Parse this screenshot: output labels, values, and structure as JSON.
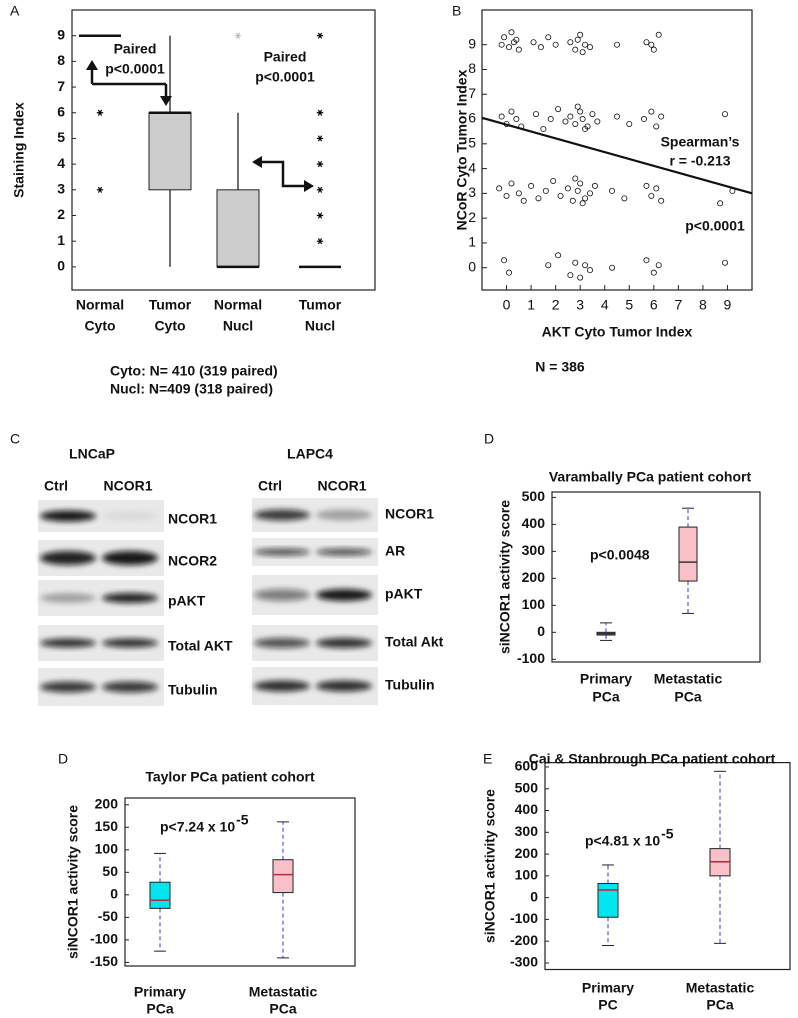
{
  "chart_data": [
    {
      "type": "box",
      "panel": "A",
      "ylabel": "Staining Index",
      "categories": [
        [
          "Normal",
          "Cyto"
        ],
        [
          "Tumor",
          "Cyto"
        ],
        [
          "Normal",
          "Nucl"
        ],
        [
          "Tumor",
          "Nucl"
        ]
      ],
      "boxes": [
        {
          "min": 9,
          "q1": 9,
          "median": 9,
          "q3": 9,
          "max": 9,
          "outliers": [
            6,
            3
          ]
        },
        {
          "min": 0,
          "q1": 3,
          "median": 6,
          "q3": 6,
          "max": 9,
          "outliers": []
        },
        {
          "min": 0,
          "q1": 0,
          "median": 0,
          "q3": 3,
          "max": 6,
          "outliers": [
            9
          ],
          "outlier_color": "#bbbbbb"
        },
        {
          "min": 0,
          "q1": 0,
          "median": 0,
          "q3": 0,
          "max": 0,
          "outliers": [
            1,
            2,
            3,
            4,
            5,
            6,
            9
          ]
        }
      ],
      "color": "#cccccc",
      "ylim": [
        -0.9,
        10
      ],
      "yticks": [
        0,
        1,
        2,
        3,
        4,
        5,
        6,
        7,
        8,
        9
      ],
      "annotations": [
        "Paired",
        "p<0.0001",
        "Paired",
        "p<0.0001"
      ],
      "footnotes": [
        "Cyto: N= 410 (319 paired)",
        "Nucl: N=409  (318 paired)"
      ]
    },
    {
      "type": "scatter",
      "panel": "B",
      "xlabel": "AKT Cyto Tumor Index",
      "ylabel": "NCoR Cyto Tumor Index",
      "x": [
        -0.1,
        0.1,
        0.3,
        0.5,
        0.2,
        -0.2,
        0.4,
        1.1,
        1.4,
        1.7,
        2.0,
        2.6,
        2.8,
        3.0,
        3.2,
        3.4,
        2.9,
        3.1,
        4.5,
        5.7,
        6.0,
        6.2,
        5.9,
        -0.2,
        0.0,
        0.2,
        0.4,
        0.6,
        1.2,
        1.5,
        1.8,
        2.1,
        2.4,
        2.6,
        2.8,
        3.0,
        3.1,
        3.3,
        3.5,
        3.7,
        2.9,
        3.2,
        4.5,
        5.0,
        5.6,
        5.9,
        6.1,
        6.3,
        8.9,
        -0.3,
        0.0,
        0.2,
        0.5,
        0.7,
        1.0,
        1.3,
        1.6,
        1.9,
        2.2,
        2.5,
        2.7,
        2.9,
        3.0,
        3.2,
        3.4,
        3.6,
        2.8,
        3.1,
        4.3,
        4.8,
        5.7,
        5.9,
        6.1,
        6.3,
        8.7,
        9.2,
        -0.1,
        0.1,
        1.7,
        2.1,
        2.6,
        2.8,
        3.0,
        3.2,
        3.4,
        4.3,
        5.7,
        6.0,
        6.2,
        8.9
      ],
      "y": [
        9.3,
        8.9,
        9.1,
        8.8,
        9.5,
        9.0,
        9.2,
        9.1,
        8.9,
        9.3,
        9.0,
        9.1,
        8.8,
        9.4,
        9.0,
        8.9,
        9.2,
        8.7,
        9.0,
        9.1,
        8.8,
        9.4,
        9.0,
        6.1,
        5.8,
        6.3,
        6.0,
        5.7,
        6.2,
        5.6,
        6.0,
        6.4,
        5.9,
        6.1,
        5.8,
        6.3,
        6.0,
        5.7,
        6.2,
        5.9,
        6.5,
        5.6,
        6.1,
        5.8,
        6.0,
        6.3,
        5.7,
        6.1,
        6.2,
        3.2,
        2.9,
        3.4,
        3.0,
        2.7,
        3.3,
        2.8,
        3.1,
        3.5,
        2.9,
        3.2,
        2.7,
        3.1,
        3.4,
        2.8,
        3.0,
        3.3,
        3.6,
        2.6,
        3.1,
        2.8,
        3.3,
        2.9,
        3.2,
        2.7,
        2.6,
        3.1,
        0.3,
        -0.2,
        0.1,
        0.5,
        -0.3,
        0.2,
        -0.4,
        0.1,
        -0.1,
        0.0,
        0.3,
        -0.2,
        0.1,
        0.2
      ],
      "regression": {
        "x": [
          -1,
          10
        ],
        "y": [
          6.05,
          3.0
        ]
      },
      "xlim": [
        -1,
        10
      ],
      "ylim": [
        -0.9,
        10.4
      ],
      "xticks": [
        0,
        1,
        2,
        3,
        4,
        5,
        6,
        7,
        8,
        9
      ],
      "yticks": [
        0,
        1,
        2,
        3,
        4,
        5,
        6,
        7,
        8,
        9
      ],
      "annotations": [
        "Spearman’s",
        "r = -0.213",
        "p<0.0001"
      ],
      "footnote": "N = 386"
    },
    {
      "type": "box",
      "panel": "D",
      "title": "Varambally PCa patient cohort",
      "ylabel": "siNCOR1 activity score",
      "categories": [
        [
          "Primary",
          "PCa"
        ],
        [
          "Metastatic",
          "PCa"
        ]
      ],
      "boxes": [
        {
          "min": -30,
          "q1": -10,
          "median": -5,
          "q3": 0,
          "max": 35,
          "color": "#8fa8c8"
        },
        {
          "min": 70,
          "q1": 190,
          "median": 260,
          "q3": 390,
          "max": 460,
          "color": "#f9c0c8"
        }
      ],
      "ylim": [
        -110,
        520
      ],
      "yticks": [
        -100,
        0,
        100,
        200,
        300,
        400,
        500
      ],
      "p_label": "p<0.0048"
    },
    {
      "type": "box",
      "panel": "D",
      "title": "Taylor PCa patient cohort",
      "ylabel": "siNCOR1 activity score",
      "categories": [
        [
          "Primary",
          "PCa"
        ],
        [
          "Metastatic",
          "PCa"
        ]
      ],
      "boxes": [
        {
          "min": -125,
          "q1": -30,
          "median": -12,
          "q3": 28,
          "max": 92,
          "color": "#00e5ee"
        },
        {
          "min": -140,
          "q1": 5,
          "median": 45,
          "q3": 78,
          "max": 162,
          "color": "#f9c0c8"
        }
      ],
      "ylim": [
        -158,
        215
      ],
      "yticks": [
        -150,
        -100,
        -50,
        0,
        50,
        100,
        150,
        200
      ],
      "p_label": "p<7.24 x 10",
      "p_exponent": "-5"
    },
    {
      "type": "box",
      "panel": "E",
      "title": "Cai & Stanbrough PCa patient cohort",
      "ylabel": "siNCOR1 activity score",
      "categories": [
        [
          "Primary",
          "PC"
        ],
        [
          "Metastatic",
          "PCa"
        ]
      ],
      "boxes": [
        {
          "min": -220,
          "q1": -90,
          "median": 35,
          "q3": 65,
          "max": 150,
          "color": "#00e5ee"
        },
        {
          "min": -210,
          "q1": 100,
          "median": 165,
          "q3": 225,
          "max": 580,
          "color": "#f9c0c8"
        }
      ],
      "ylim": [
        -330,
        620
      ],
      "yticks": [
        -300,
        -200,
        -100,
        0,
        100,
        200,
        300,
        400,
        500,
        600
      ],
      "p_label": "p<4.81 x 10",
      "p_exponent": "-5"
    }
  ],
  "blots": {
    "panel": "C",
    "cell_lines": [
      {
        "name": "LNCaP",
        "lanes": [
          "Ctrl",
          "NCOR1"
        ],
        "proteins": [
          "NCOR1",
          "NCOR2",
          "pAKT",
          "Total AKT",
          "Tubulin"
        ]
      },
      {
        "name": "LAPC4",
        "lanes": [
          "Ctrl",
          "NCOR1"
        ],
        "proteins": [
          "NCOR1",
          "AR",
          "pAKT",
          "Total Akt",
          "Tubulin"
        ]
      }
    ]
  }
}
